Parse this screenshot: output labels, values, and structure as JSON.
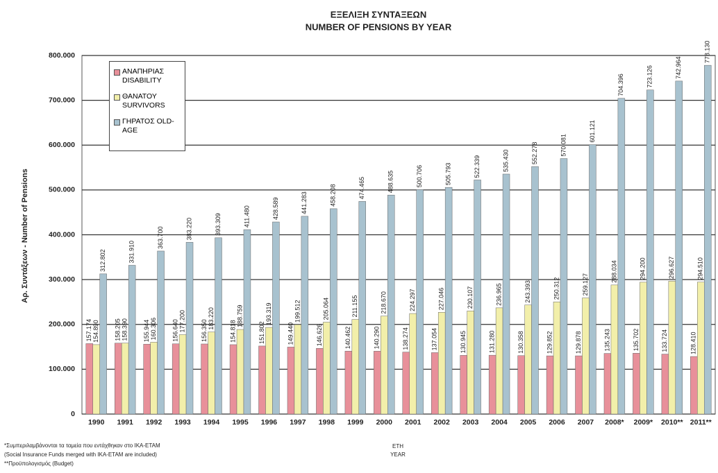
{
  "chart_data": {
    "type": "bar",
    "title": "ΕΞΕΛΙΞΗ ΣΥΝΤΑΞΕΩΝ",
    "subtitle": "NUMBER OF PENSIONS BY YEAR",
    "y_label": "Αρ. Συντάξεων - Number of Pensions",
    "x_label": [
      "ΕΤΗ",
      "YEAR"
    ],
    "footnotes": [
      "*Συμπεριλαμβάνονται τα ταμεία που εντάχθηκαν στο ΙΚΑ-ΕΤΑΜ",
      "(Social Insurance Funds merged with IKA-ETAM are included)",
      "**Προϋπολογισμός (Budget)"
    ],
    "categories": [
      "1990",
      "1991",
      "1992",
      "1993",
      "1994",
      "1995",
      "1996",
      "1997",
      "1998",
      "1999",
      "2000",
      "2001",
      "2002",
      "2003",
      "2004",
      "2005",
      "2006",
      "2007",
      "2008*",
      "2009*",
      "2010**",
      "2011**"
    ],
    "ylim": [
      0,
      800000
    ],
    "yticks": [
      {
        "value": 0,
        "label": "0"
      },
      {
        "value": 100000,
        "label": "100.000"
      },
      {
        "value": 200000,
        "label": "200.000"
      },
      {
        "value": 300000,
        "label": "300.000"
      },
      {
        "value": 400000,
        "label": "400.000"
      },
      {
        "value": 500000,
        "label": "500.000"
      },
      {
        "value": 600000,
        "label": "600.000"
      },
      {
        "value": 700000,
        "label": "700.000"
      },
      {
        "value": 800000,
        "label": "800.000"
      }
    ],
    "grid": true,
    "series": [
      {
        "name": "ΑΝΑΠΗΡΙΑΣ DISABILITY",
        "color": "#e8909a",
        "values": [
          157174,
          158205,
          155944,
          156640,
          156350,
          154818,
          151802,
          149440,
          146626,
          140462,
          140290,
          138274,
          137054,
          130945,
          131280,
          130358,
          129852,
          129878,
          135243,
          135702,
          133724,
          128410
        ],
        "value_labels": [
          "157.174",
          "158.205",
          "155.944",
          "156.640",
          "156.350",
          "154.818",
          "151.802",
          "149.440",
          "146.626",
          "140.462",
          "140.290",
          "138.274",
          "137.054",
          "130.945",
          "131.280",
          "130.358",
          "129.852",
          "129.878",
          "135.243",
          "135.702",
          "133.724",
          "128.410"
        ]
      },
      {
        "name": "ΘΑΝΑΤΟΥ SURVIVORS",
        "color": "#f2efaa",
        "values": [
          154890,
          158390,
          160306,
          177200,
          183220,
          188759,
          193319,
          199512,
          205064,
          211155,
          218670,
          224297,
          227046,
          230107,
          236965,
          243393,
          250312,
          259127,
          288034,
          294200,
          296627,
          294510
        ],
        "value_labels": [
          "154.890",
          "158.390",
          "160.306",
          "177.200",
          "183.220",
          "188.759",
          "193.319",
          "199.512",
          "205.064",
          "211.155",
          "218.670",
          "224.297",
          "227.046",
          "230.107",
          "236.965",
          "243.393",
          "250.312",
          "259.127",
          "288.034",
          "294.200",
          "296.627",
          "294.510"
        ]
      },
      {
        "name": "ΓΗΡΑΤΟΣ OLD-AGE",
        "color": "#a8c2cf",
        "values": [
          312802,
          331910,
          363700,
          383220,
          393309,
          411480,
          428589,
          441283,
          458208,
          474465,
          488635,
          500706,
          505793,
          522339,
          535430,
          552278,
          570081,
          601121,
          704396,
          723126,
          742964,
          778130
        ],
        "value_labels": [
          "312.802",
          "331.910",
          "363.700",
          "383.220",
          "393.309",
          "411.480",
          "428.589",
          "441.283",
          "458.208",
          "474.465",
          "488.635",
          "500.706",
          "505.793",
          "522.339",
          "535.430",
          "552.278",
          "570.081",
          "601.121",
          "704.396",
          "723.126",
          "742.964",
          "778.130"
        ]
      }
    ]
  }
}
